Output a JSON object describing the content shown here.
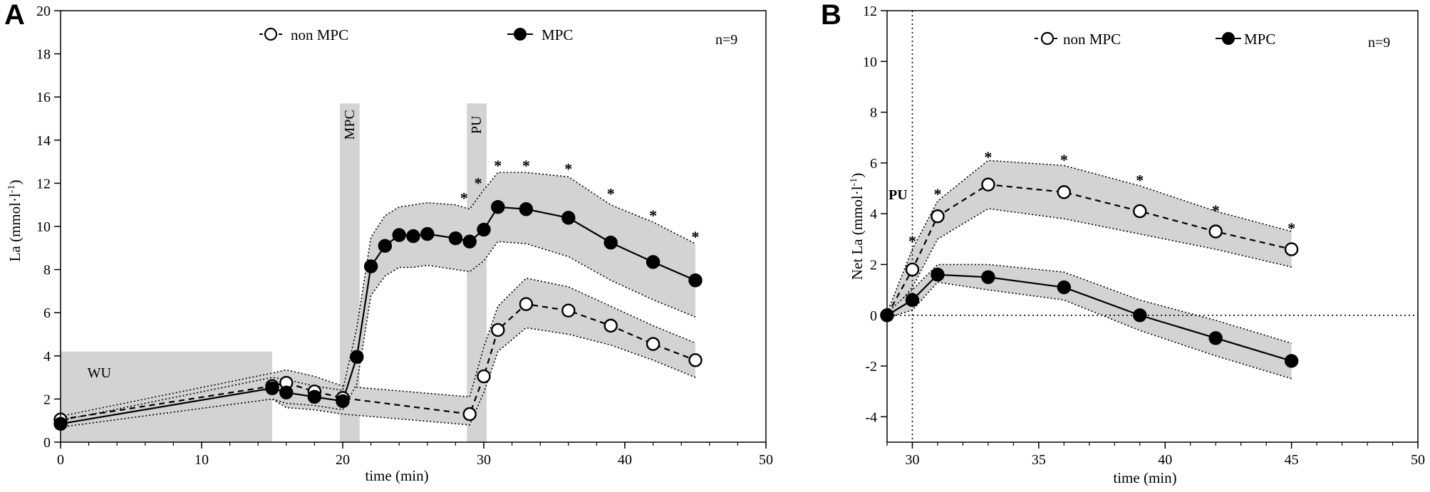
{
  "chart_data": [
    {
      "panel": "A",
      "type": "line",
      "xlabel": "time (min)",
      "ylabel": "La (mmol·l⁻¹)",
      "ylabel_main": "La (mmol·l",
      "ylabel_sup": "-1",
      "ylabel_close": ")",
      "xlim": [
        0,
        50
      ],
      "ylim": [
        0,
        20
      ],
      "xticks": [
        0,
        10,
        20,
        30,
        40,
        50
      ],
      "yticks": [
        0,
        2,
        4,
        6,
        8,
        10,
        12,
        14,
        16,
        18,
        20
      ],
      "n_label": "n=9",
      "shaded_regions": [
        {
          "label": "WU",
          "x0": 0,
          "x1": 15,
          "y0": 0,
          "y1": 4.2
        },
        {
          "label": "MPC",
          "x0": 19.8,
          "x1": 21.2,
          "y0": 0,
          "y1": 15.7
        },
        {
          "label": "PU",
          "x0": 28.8,
          "x1": 30.2,
          "y0": 0,
          "y1": 15.7
        }
      ],
      "series": [
        {
          "name": "non MPC",
          "marker": "open",
          "line": "dashed",
          "x": [
            0,
            15,
            16,
            18,
            20,
            29,
            30,
            31,
            33,
            36,
            39,
            42,
            45
          ],
          "y": [
            1.05,
            2.6,
            2.75,
            2.35,
            2.05,
            1.3,
            3.05,
            5.2,
            6.4,
            6.1,
            5.4,
            4.55,
            3.8
          ],
          "band_upper": [
            1.2,
            3.2,
            3.35,
            3.05,
            2.6,
            2.1,
            4.4,
            6.3,
            7.6,
            7.2,
            6.3,
            5.4,
            4.6
          ],
          "band_lower": [
            0.9,
            2.0,
            1.6,
            1.5,
            1.3,
            0.8,
            2.3,
            4.2,
            5.3,
            5.0,
            4.5,
            3.8,
            3.0
          ]
        },
        {
          "name": "MPC",
          "marker": "filled",
          "line": "solid",
          "x": [
            0,
            15,
            16,
            18,
            20,
            21,
            22,
            23,
            24,
            25,
            26,
            28,
            29,
            30,
            31,
            33,
            36,
            39,
            42,
            45
          ],
          "y": [
            0.85,
            2.5,
            2.3,
            2.1,
            1.9,
            3.95,
            8.15,
            9.1,
            9.6,
            9.55,
            9.65,
            9.45,
            9.3,
            9.85,
            10.9,
            10.8,
            10.4,
            9.25,
            8.35,
            7.5
          ],
          "band_upper": [
            1.0,
            3.0,
            2.9,
            2.6,
            2.4,
            5.3,
            9.5,
            10.5,
            10.9,
            11.0,
            11.1,
            11.0,
            10.8,
            11.7,
            12.5,
            12.5,
            12.3,
            11.0,
            10.2,
            9.2
          ],
          "band_lower": [
            0.7,
            2.0,
            1.8,
            1.7,
            1.5,
            2.7,
            6.8,
            7.7,
            8.1,
            8.1,
            8.2,
            8.0,
            7.9,
            8.4,
            9.3,
            9.2,
            8.6,
            7.5,
            6.6,
            5.8
          ]
        }
      ],
      "significance": [
        {
          "x": 28.6,
          "y": 11.4,
          "label": "*"
        },
        {
          "x": 29.6,
          "y": 12.1,
          "label": "*"
        },
        {
          "x": 31,
          "y": 12.9,
          "label": "*"
        },
        {
          "x": 33,
          "y": 12.9,
          "label": "*"
        },
        {
          "x": 36,
          "y": 12.75,
          "label": "*"
        },
        {
          "x": 39,
          "y": 11.6,
          "label": "*"
        },
        {
          "x": 42,
          "y": 10.6,
          "label": "*"
        },
        {
          "x": 45,
          "y": 9.6,
          "label": "*"
        }
      ]
    },
    {
      "panel": "B",
      "type": "line",
      "xlabel": "time (min)",
      "ylabel": "Net La (mmol·l⁻¹)",
      "ylabel_main": "Net La (mmol·l",
      "ylabel_sup": "-1",
      "ylabel_close": ")",
      "xlim": [
        29,
        50
      ],
      "ylim": [
        -5,
        12
      ],
      "xticks": [
        30,
        35,
        40,
        45,
        50
      ],
      "yticks": [
        -4,
        -2,
        0,
        2,
        4,
        6,
        8,
        10,
        12
      ],
      "n_label": "n=9",
      "pu_label": "PU",
      "reference_lines": {
        "vertical_x": 30,
        "horizontal_y": 0
      },
      "series": [
        {
          "name": "non MPC",
          "marker": "open",
          "line": "dashed",
          "x": [
            29,
            30,
            31,
            33,
            36,
            39,
            42,
            45
          ],
          "y": [
            0.0,
            1.8,
            3.9,
            5.15,
            4.85,
            4.1,
            3.3,
            2.6
          ],
          "band_upper": [
            0.1,
            2.6,
            4.5,
            6.1,
            5.9,
            5.1,
            4.1,
            3.3
          ],
          "band_lower": [
            -0.1,
            1.1,
            3.0,
            4.2,
            3.8,
            3.2,
            2.6,
            1.9
          ]
        },
        {
          "name": "MPC",
          "marker": "filled",
          "line": "solid",
          "x": [
            29,
            30,
            31,
            33,
            36,
            39,
            42,
            45
          ],
          "y": [
            0.0,
            0.6,
            1.6,
            1.5,
            1.1,
            0.0,
            -0.9,
            -1.8
          ],
          "band_upper": [
            0.1,
            1.0,
            2.0,
            2.0,
            1.7,
            0.6,
            -0.2,
            -1.1
          ],
          "band_lower": [
            -0.1,
            0.2,
            1.3,
            1.0,
            0.6,
            -0.6,
            -1.6,
            -2.5
          ]
        }
      ],
      "significance": [
        {
          "x": 30,
          "y": 3.0,
          "label": "*"
        },
        {
          "x": 31,
          "y": 4.85,
          "label": "*"
        },
        {
          "x": 33,
          "y": 6.3,
          "label": "*"
        },
        {
          "x": 36,
          "y": 6.2,
          "label": "*"
        },
        {
          "x": 39,
          "y": 5.4,
          "label": "*"
        },
        {
          "x": 42,
          "y": 4.2,
          "label": "*"
        },
        {
          "x": 45,
          "y": 3.5,
          "label": "*"
        }
      ]
    }
  ]
}
